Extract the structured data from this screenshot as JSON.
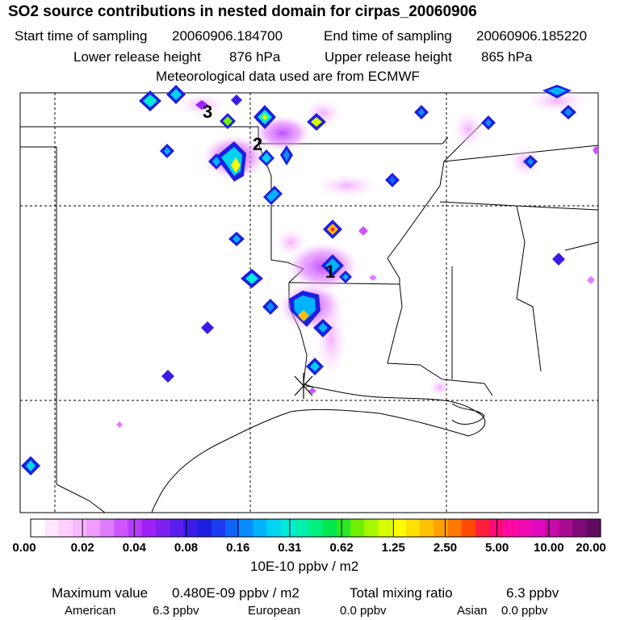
{
  "header": {
    "title": "SO2 source contributions in nested domain for cirpas_20060906",
    "start_label": "Start time of sampling",
    "start_value": "20060906.184700",
    "end_label": "End time of sampling",
    "end_value": "20060906.185220",
    "lower_label": "Lower release height",
    "lower_value": "876 hPa",
    "upper_label": "Upper release height",
    "upper_value": "865 hPa",
    "met_line": "Meteorological data used are from ECMWF"
  },
  "map": {
    "source_labels": [
      "3",
      "2",
      "1"
    ],
    "receptor_symbol": "X"
  },
  "colorbar": {
    "tick_labels": [
      "0.00",
      "0.02",
      "0.04",
      "0.08",
      "0.16",
      "0.31",
      "0.62",
      "1.25",
      "2.50",
      "5.00",
      "10.00",
      "20.00"
    ],
    "colors": [
      "#ffffff",
      "#ffe8ff",
      "#ffd0ff",
      "#f8b8ff",
      "#f09cff",
      "#e07cff",
      "#cc55ff",
      "#b83cff",
      "#a020f8",
      "#8020f0",
      "#5a1ef0",
      "#3a1ce8",
      "#1e1ee0",
      "#1a3cf0",
      "#0f64f8",
      "#0a8cff",
      "#00b4ff",
      "#00d4f0",
      "#00ecd8",
      "#00f0b0",
      "#00f080",
      "#00e850",
      "#28e828",
      "#70f000",
      "#a8f800",
      "#d8ff00",
      "#ffff00",
      "#ffe000",
      "#ffc000",
      "#ffa000",
      "#ff7800",
      "#ff4a00",
      "#ff1e3c",
      "#ff0a78",
      "#ff0aa0",
      "#f00ab4",
      "#e00ac0",
      "#c80aa8",
      "#a80a90",
      "#800a78",
      "#600a60"
    ],
    "units": "10E-10 ppbv / m2"
  },
  "footer": {
    "max_label": "Maximum value",
    "max_value": "0.480E-09 ppbv / m2",
    "total_label": "Total mixing ratio",
    "total_value": "6.3 ppbv",
    "american_label": "American",
    "american_value": "6.3 ppbv",
    "european_label": "European",
    "european_value": "0.0 ppbv",
    "asian_label": "Asian",
    "asian_value": "0.0 ppbv"
  }
}
